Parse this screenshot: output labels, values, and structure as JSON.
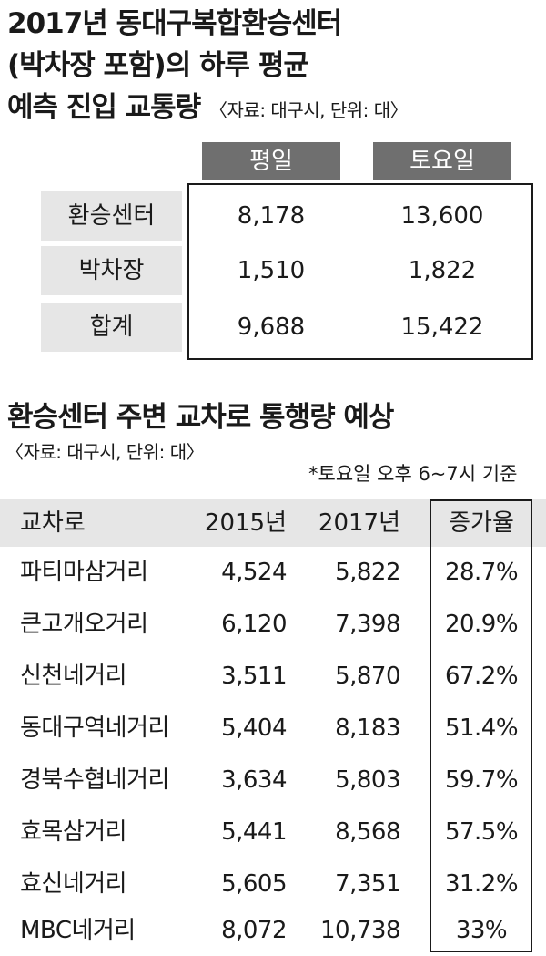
{
  "title1": {
    "line1": "2017년 동대구복합환승센터",
    "line2": "(박차장 포함)의 하루 평균",
    "line3": "예측 진입 교통량",
    "source": "〈자료: 대구시, 단위: 대〉"
  },
  "table1": {
    "headers": [
      "평일",
      "토요일"
    ],
    "rows": [
      {
        "label": "환승센터",
        "weekday": "8,178",
        "saturday": "13,600"
      },
      {
        "label": "박차장",
        "weekday": "1,510",
        "saturday": "1,822"
      },
      {
        "label": "합계",
        "weekday": "9,688",
        "saturday": "15,422"
      }
    ]
  },
  "title2": {
    "heading": "환승센터 주변 교차로 통행량 예상",
    "source": "〈자료: 대구시, 단위: 대〉",
    "note": "*토요일 오후 6~7시 기준"
  },
  "table2": {
    "headers": {
      "name": "교차로",
      "y2015": "2015년",
      "y2017": "2017년",
      "rate": "증가율"
    },
    "rows": [
      {
        "name": "파티마삼거리",
        "y2015": "4,524",
        "y2017": "5,822",
        "rate": "28.7%"
      },
      {
        "name": "큰고개오거리",
        "y2015": "6,120",
        "y2017": "7,398",
        "rate": "20.9%"
      },
      {
        "name": "신천네거리",
        "y2015": "3,511",
        "y2017": "5,870",
        "rate": "67.2%"
      },
      {
        "name": "동대구역네거리",
        "y2015": "5,404",
        "y2017": "8,183",
        "rate": "51.4%"
      },
      {
        "name": "경북수협네거리",
        "y2015": "3,634",
        "y2017": "5,803",
        "rate": "59.7%"
      },
      {
        "name": "효목삼거리",
        "y2015": "5,441",
        "y2017": "8,568",
        "rate": "57.5%"
      },
      {
        "name": "효신네거리",
        "y2015": "5,605",
        "y2017": "7,351",
        "rate": "31.2%"
      },
      {
        "name": "MBC네거리",
        "y2015": "8,072",
        "y2017": "10,738",
        "rate": "33%"
      }
    ]
  }
}
